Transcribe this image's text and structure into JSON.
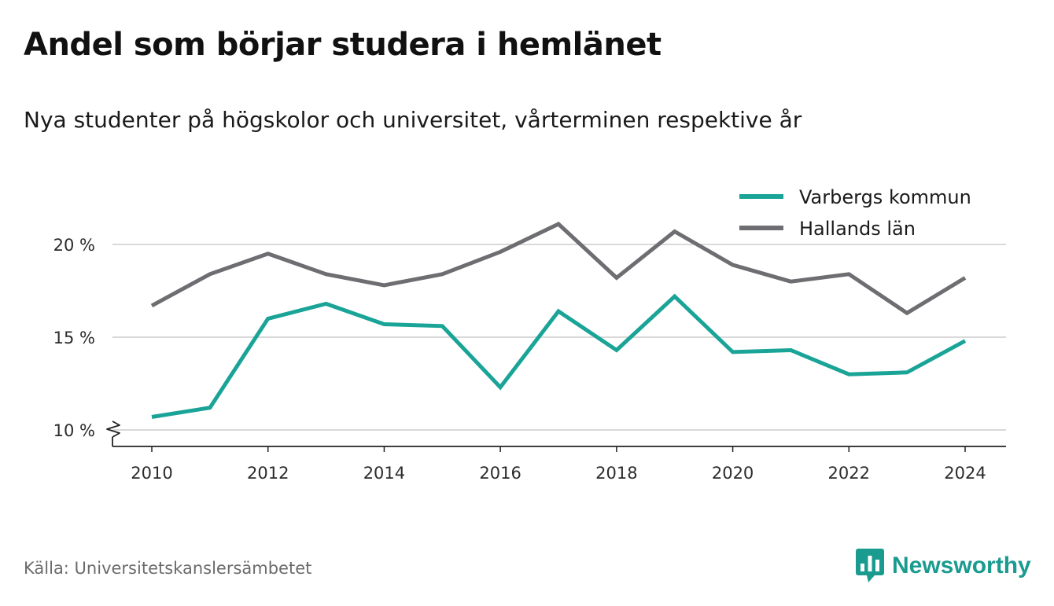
{
  "title": "Andel som börjar studera i hemlänet",
  "subtitle": "Nya studenter på högskolor och universitet, vårterminen respektive år",
  "source": "Källa: Universitetskanslersämbetet",
  "brand": {
    "name": "Newsworthy",
    "color": "#1a9b8f"
  },
  "chart_data": {
    "type": "line",
    "x": [
      2010,
      2011,
      2012,
      2013,
      2014,
      2015,
      2016,
      2017,
      2018,
      2019,
      2020,
      2021,
      2022,
      2023,
      2024
    ],
    "x_ticks": [
      "2010",
      "2012",
      "2014",
      "2016",
      "2018",
      "2020",
      "2022",
      "2024"
    ],
    "y_ticks": [
      "10 %",
      "15 %",
      "20 %"
    ],
    "ylim": [
      10,
      22
    ],
    "y_axis_break": true,
    "grid": "horizontal",
    "legend_position": "top-right",
    "series": [
      {
        "name": "Varbergs kommun",
        "color": "#1aa497",
        "values": [
          10.7,
          11.2,
          16.0,
          16.8,
          15.7,
          15.6,
          12.3,
          16.4,
          14.3,
          17.2,
          14.2,
          14.3,
          13.0,
          13.1,
          14.8
        ]
      },
      {
        "name": "Hallands län",
        "color": "#6d6d72",
        "values": [
          16.7,
          18.4,
          19.5,
          18.4,
          17.8,
          18.4,
          19.6,
          21.1,
          18.2,
          20.7,
          18.9,
          18.0,
          18.4,
          16.3,
          18.2
        ]
      }
    ]
  }
}
